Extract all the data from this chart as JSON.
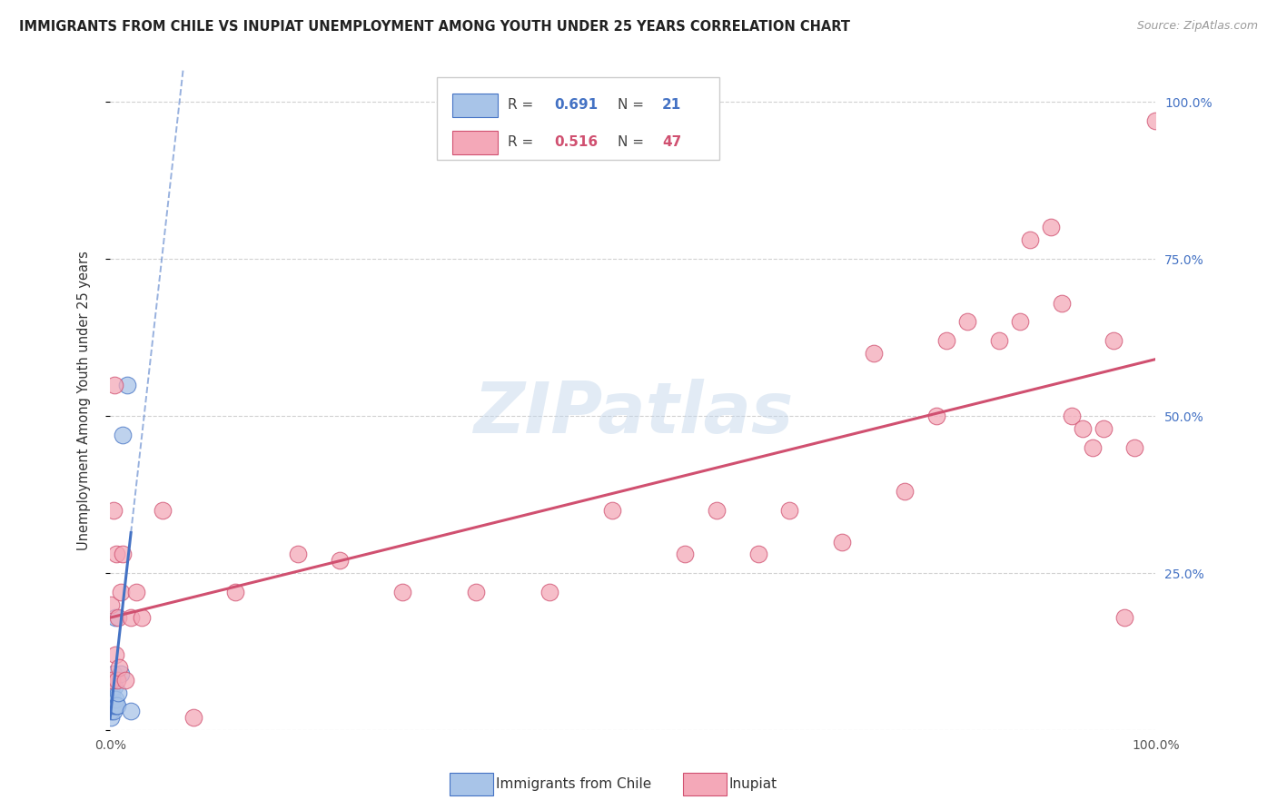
{
  "title": "IMMIGRANTS FROM CHILE VS INUPIAT UNEMPLOYMENT AMONG YOUTH UNDER 25 YEARS CORRELATION CHART",
  "source": "Source: ZipAtlas.com",
  "ylabel": "Unemployment Among Youth under 25 years",
  "watermark": "ZIPatlas",
  "legend_label1": "Immigrants from Chile",
  "legend_label2": "Inupiat",
  "R1": 0.691,
  "N1": 21,
  "R2": 0.516,
  "N2": 47,
  "color1_fill": "#a8c4e8",
  "color1_edge": "#4472c4",
  "color2_fill": "#f4a8b8",
  "color2_edge": "#d05070",
  "color_right_axis": "#4472c4",
  "blue_x": [
    0.0008,
    0.001,
    0.001,
    0.0012,
    0.0015,
    0.002,
    0.002,
    0.0025,
    0.003,
    0.003,
    0.004,
    0.004,
    0.005,
    0.005,
    0.006,
    0.007,
    0.008,
    0.01,
    0.012,
    0.016,
    0.02
  ],
  "blue_y": [
    0.02,
    0.03,
    0.05,
    0.04,
    0.06,
    0.04,
    0.07,
    0.05,
    0.03,
    0.09,
    0.04,
    0.07,
    0.05,
    0.18,
    0.04,
    0.04,
    0.06,
    0.09,
    0.47,
    0.55,
    0.03
  ],
  "pink_x": [
    0.001,
    0.002,
    0.003,
    0.004,
    0.005,
    0.006,
    0.007,
    0.008,
    0.009,
    0.01,
    0.012,
    0.015,
    0.02,
    0.025,
    0.03,
    0.05,
    0.08,
    0.12,
    0.18,
    0.22,
    0.28,
    0.35,
    0.42,
    0.48,
    0.55,
    0.58,
    0.62,
    0.65,
    0.7,
    0.73,
    0.76,
    0.79,
    0.8,
    0.82,
    0.85,
    0.87,
    0.88,
    0.9,
    0.91,
    0.92,
    0.93,
    0.94,
    0.95,
    0.96,
    0.97,
    0.98,
    1.0
  ],
  "pink_y": [
    0.2,
    0.08,
    0.35,
    0.55,
    0.12,
    0.28,
    0.08,
    0.18,
    0.1,
    0.22,
    0.28,
    0.08,
    0.18,
    0.22,
    0.18,
    0.35,
    0.02,
    0.22,
    0.28,
    0.27,
    0.22,
    0.22,
    0.22,
    0.35,
    0.28,
    0.35,
    0.28,
    0.35,
    0.3,
    0.6,
    0.38,
    0.5,
    0.62,
    0.65,
    0.62,
    0.65,
    0.78,
    0.8,
    0.68,
    0.5,
    0.48,
    0.45,
    0.48,
    0.62,
    0.18,
    0.45,
    0.97
  ]
}
